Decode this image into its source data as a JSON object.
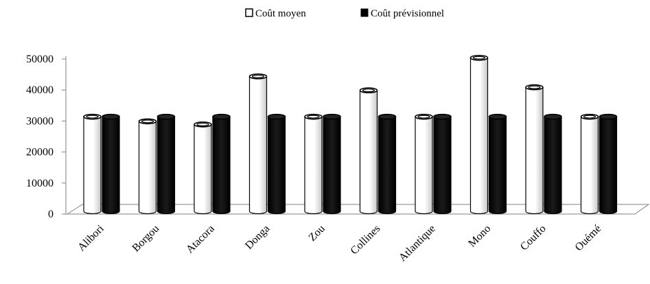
{
  "chart_data": {
    "type": "bar",
    "title": "",
    "xlabel": "",
    "ylabel": "",
    "categories": [
      "Alibori",
      "Borgou",
      "Atacora",
      "Donga",
      "Zou",
      "Collines",
      "Atlantique",
      "Mono",
      "Couffo",
      "Ouémé"
    ],
    "series": [
      {
        "name": "Coût moyen",
        "values": [
          30500,
          29000,
          28000,
          43500,
          30500,
          39000,
          30500,
          49500,
          40000,
          30500
        ]
      },
      {
        "name": "Coût prévisionnel",
        "values": [
          30500,
          30500,
          30500,
          30500,
          30500,
          30500,
          30500,
          30500,
          30500,
          30500
        ]
      }
    ],
    "y_ticks": [
      "0",
      "10000",
      "20000",
      "30000",
      "40000",
      "50000"
    ],
    "ylim": [
      0,
      50000
    ],
    "legend_position": "top",
    "grid": false,
    "style": "3d-cylinder",
    "colors": {
      "Coût moyen": "#ffffff",
      "Coût prévisionnel": "#000000"
    }
  }
}
